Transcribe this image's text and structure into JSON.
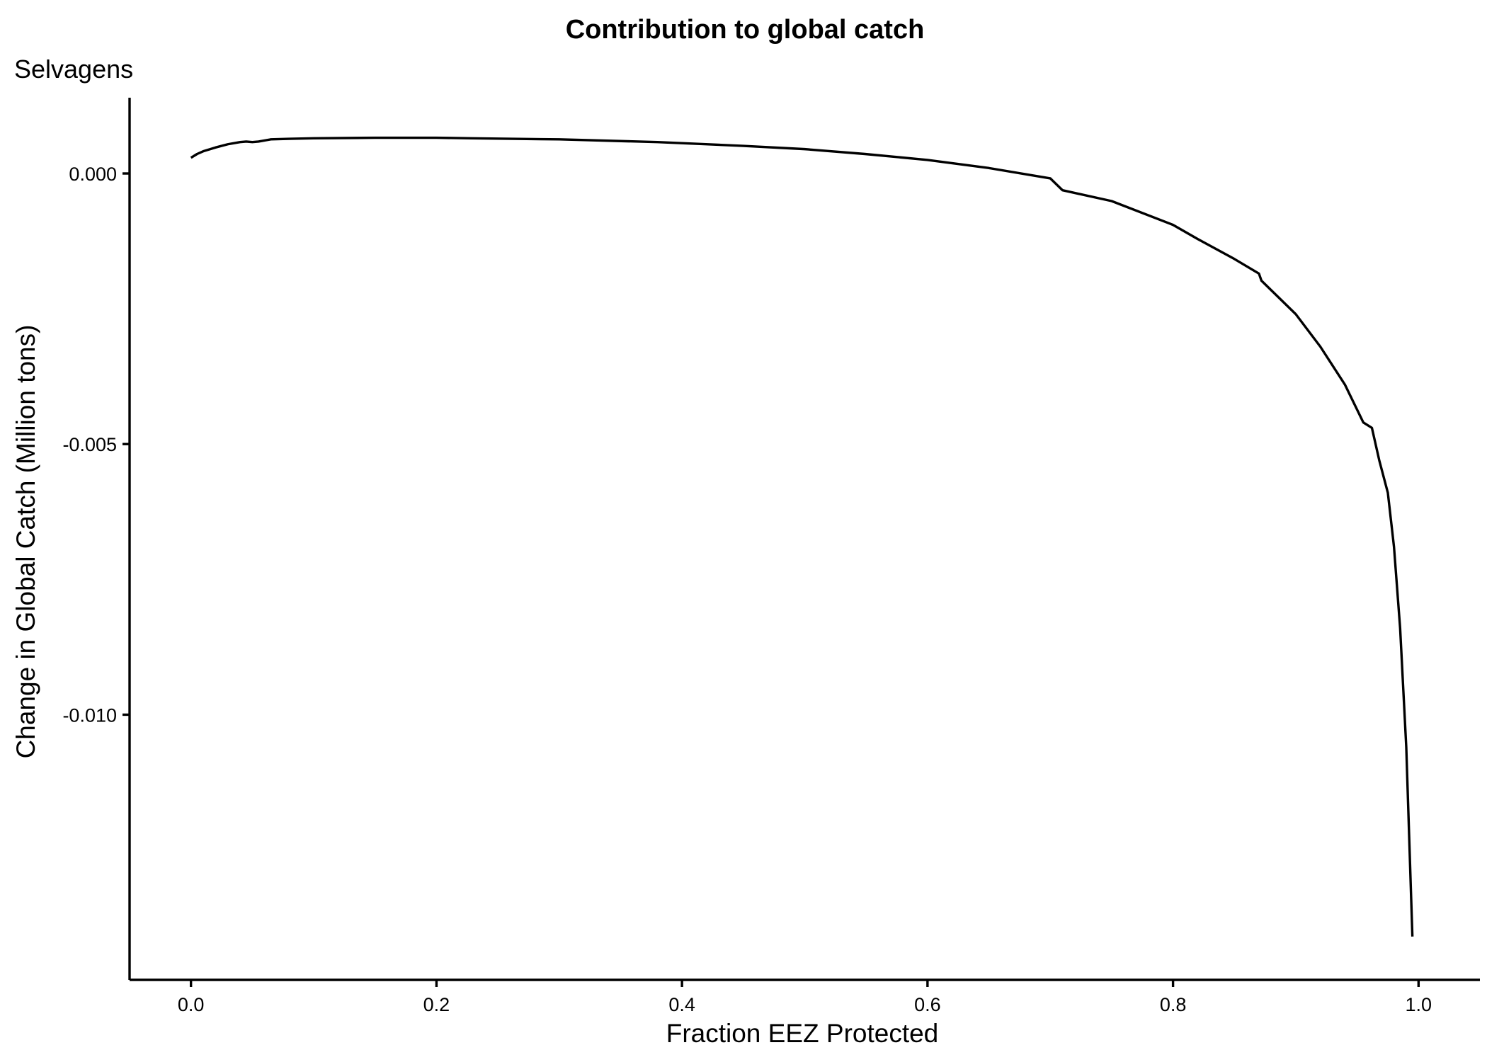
{
  "chart_data": {
    "type": "line",
    "title": "Contribution to global catch",
    "subtitle": "Selvagens",
    "xlabel": "Fraction EEZ Protected",
    "ylabel": "Change in Global Catch (Million tons)",
    "xlim": [
      -0.05,
      1.05
    ],
    "ylim": [
      -0.0149,
      0.0014
    ],
    "x_ticks": [
      0.0,
      0.2,
      0.4,
      0.6,
      0.8,
      1.0
    ],
    "x_tick_labels": [
      "0.0",
      "0.2",
      "0.4",
      "0.6",
      "0.8",
      "1.0"
    ],
    "y_ticks": [
      0.0,
      -0.005,
      -0.01
    ],
    "y_tick_labels": [
      "0.000",
      "-0.005",
      "-0.010"
    ],
    "grid": false,
    "legend": "none",
    "series": [
      {
        "color": "#000000",
        "points": [
          [
            0.0,
            0.00029
          ],
          [
            0.005,
            0.00036
          ],
          [
            0.01,
            0.00041
          ],
          [
            0.02,
            0.00048
          ],
          [
            0.03,
            0.00054
          ],
          [
            0.04,
            0.00058
          ],
          [
            0.045,
            0.00059
          ],
          [
            0.05,
            0.00058
          ],
          [
            0.055,
            0.00059
          ],
          [
            0.065,
            0.00063
          ],
          [
            0.08,
            0.00064
          ],
          [
            0.1,
            0.00065
          ],
          [
            0.15,
            0.00066
          ],
          [
            0.2,
            0.00066
          ],
          [
            0.228,
            0.00065
          ],
          [
            0.3,
            0.00063
          ],
          [
            0.38,
            0.00058
          ],
          [
            0.45,
            0.00051
          ],
          [
            0.5,
            0.00045
          ],
          [
            0.549,
            0.00036
          ],
          [
            0.6,
            0.00025
          ],
          [
            0.65,
            0.0001
          ],
          [
            0.7,
            -9e-05
          ],
          [
            0.71,
            -0.00031
          ],
          [
            0.75,
            -0.00051
          ],
          [
            0.8,
            -0.00095
          ],
          [
            0.82,
            -0.00121
          ],
          [
            0.85,
            -0.00158
          ],
          [
            0.87,
            -0.00185
          ],
          [
            0.872,
            -0.00198
          ],
          [
            0.9,
            -0.0026
          ],
          [
            0.92,
            -0.0032
          ],
          [
            0.94,
            -0.0039
          ],
          [
            0.955,
            -0.0046
          ],
          [
            0.962,
            -0.0047
          ],
          [
            0.968,
            -0.0053
          ],
          [
            0.975,
            -0.0059
          ],
          [
            0.98,
            -0.0069
          ],
          [
            0.985,
            -0.0084
          ],
          [
            0.99,
            -0.0106
          ],
          [
            0.995,
            -0.0141
          ]
        ]
      }
    ]
  }
}
